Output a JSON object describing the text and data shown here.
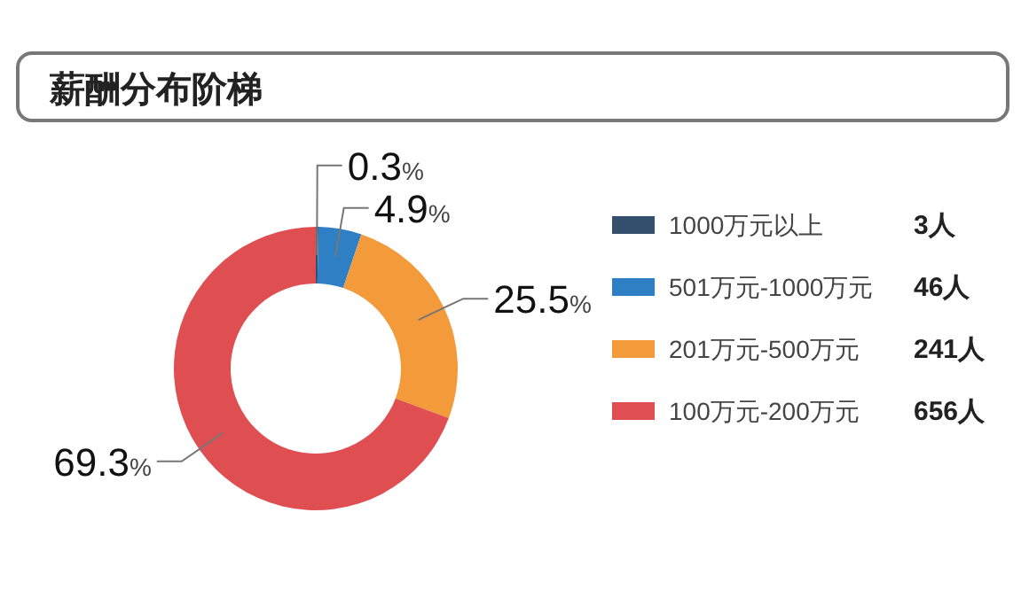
{
  "chart_data": {
    "type": "donut",
    "title": "薪酬分布阶梯",
    "categories": [
      "1000万元以上",
      "501万元-1000万元",
      "201万元-500万元",
      "100万元-200万元"
    ],
    "values": [
      0.3,
      4.9,
      25.5,
      69.3
    ],
    "colors": [
      "#34506e",
      "#2f7fc4",
      "#f39a3b",
      "#df4f52"
    ],
    "value_labels": [
      "0.3%",
      "4.9%",
      "25.5%",
      "69.3%"
    ],
    "legend": "right",
    "annotations": [
      "3人",
      "46人",
      "241人",
      "656人"
    ]
  }
}
